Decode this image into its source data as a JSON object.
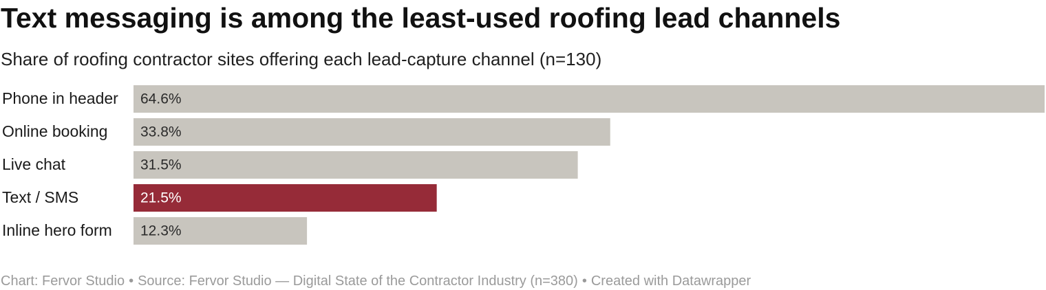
{
  "title": "Text messaging is among the least-used roofing lead channels",
  "subtitle": "Share of roofing contractor sites offering each lead-capture channel (n=130)",
  "chart_data": {
    "type": "bar",
    "orientation": "horizontal",
    "categories": [
      "Phone in header",
      "Online booking",
      "Live chat",
      "Text / SMS",
      "Inline hero form"
    ],
    "values": [
      64.6,
      33.8,
      31.5,
      21.5,
      12.3
    ],
    "value_labels": [
      "64.6%",
      "33.8%",
      "31.5%",
      "21.5%",
      "12.3%"
    ],
    "unit": "%",
    "highlight_category": "Text / SMS",
    "xlim": [
      0,
      64.6
    ],
    "grid": false,
    "legend": "none",
    "colors": {
      "default_bar": "#c8c5be",
      "highlight_bar": "#962b38",
      "default_label": "#2b2b2b",
      "highlight_label": "#ffffff"
    }
  },
  "footer": {
    "chart_credit": "Chart: Fervor Studio",
    "source": "Source: Fervor Studio — Digital State of the Contractor Industry (n=380)",
    "tool": "Created with Datawrapper",
    "separator": "•"
  }
}
